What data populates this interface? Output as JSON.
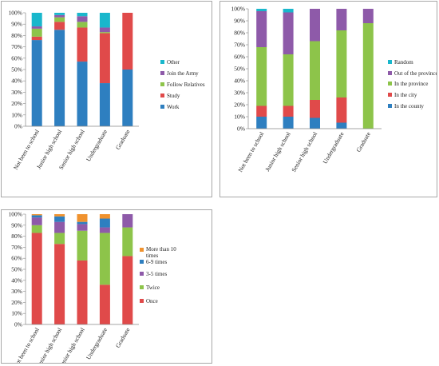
{
  "charts": [
    {
      "type": "bar",
      "stacked": true,
      "categories": [
        "Not been to school",
        "Junior high school",
        "Senior high school",
        "Undergraduate",
        "Graduate"
      ],
      "series": [
        {
          "name": "Work",
          "color": "#2e7fc0",
          "values": [
            76,
            85,
            57,
            38,
            50
          ]
        },
        {
          "name": "Study",
          "color": "#e04a4a",
          "values": [
            3,
            7,
            30,
            44,
            50
          ]
        },
        {
          "name": "Follow Relatives",
          "color": "#8dc44a",
          "values": [
            7,
            4,
            5,
            1,
            0
          ]
        },
        {
          "name": "Join the Army",
          "color": "#8e5aa9",
          "values": [
            2,
            2,
            5,
            4,
            0
          ]
        },
        {
          "name": "Other",
          "color": "#19b7cc",
          "values": [
            12,
            2,
            3,
            13,
            0
          ]
        }
      ],
      "ylim": [
        0,
        100
      ],
      "yticks": [
        "0%",
        "10%",
        "20%",
        "30%",
        "40%",
        "50%",
        "60%",
        "70%",
        "80%",
        "90%",
        "100%"
      ],
      "legend": "right"
    },
    {
      "type": "bar",
      "stacked": true,
      "categories": [
        "Not been to school",
        "Junior high school",
        "Senior high school",
        "Undergraduate",
        "Graduate"
      ],
      "series": [
        {
          "name": "In the county",
          "color": "#2e7fc0",
          "values": [
            10,
            10,
            9,
            5,
            0
          ]
        },
        {
          "name": "In the city",
          "color": "#e04a4a",
          "values": [
            9,
            9,
            15,
            21,
            0
          ]
        },
        {
          "name": "In the province",
          "color": "#8dc44a",
          "values": [
            49,
            43,
            49,
            56,
            88
          ]
        },
        {
          "name": "Out of the province",
          "color": "#8e5aa9",
          "values": [
            30,
            35,
            27,
            18,
            12
          ]
        },
        {
          "name": "Random",
          "color": "#19b7cc",
          "values": [
            2,
            3,
            0,
            0,
            0
          ]
        }
      ],
      "ylim": [
        0,
        100
      ],
      "yticks": [
        "0%",
        "10%",
        "20%",
        "30%",
        "40%",
        "50%",
        "60%",
        "70%",
        "80%",
        "90%",
        "100%"
      ],
      "legend": "right"
    },
    {
      "type": "bar",
      "stacked": true,
      "categories": [
        "Not been to school",
        "Junior high school",
        "Senior high school",
        "Undergraduate",
        "Graduate"
      ],
      "series": [
        {
          "name": "Once",
          "color": "#e04a4a",
          "values": [
            83,
            73,
            58,
            36,
            62
          ]
        },
        {
          "name": "Twice",
          "color": "#8dc44a",
          "values": [
            7,
            10,
            27,
            47,
            26
          ]
        },
        {
          "name": "3-5 times",
          "color": "#8e5aa9",
          "values": [
            7,
            10,
            6,
            5,
            12
          ]
        },
        {
          "name": "6-9 times",
          "color": "#2e7fc0",
          "values": [
            2,
            5,
            2,
            8,
            0
          ]
        },
        {
          "name": "More than 10 times",
          "color": "#f0922e",
          "values": [
            1,
            2,
            7,
            4,
            0
          ]
        }
      ],
      "ylim": [
        0,
        100
      ],
      "yticks": [
        "0%",
        "10%",
        "20%",
        "30%",
        "40%",
        "50%",
        "60%",
        "70%",
        "80%",
        "90%",
        "100%"
      ],
      "legend": "right"
    }
  ]
}
